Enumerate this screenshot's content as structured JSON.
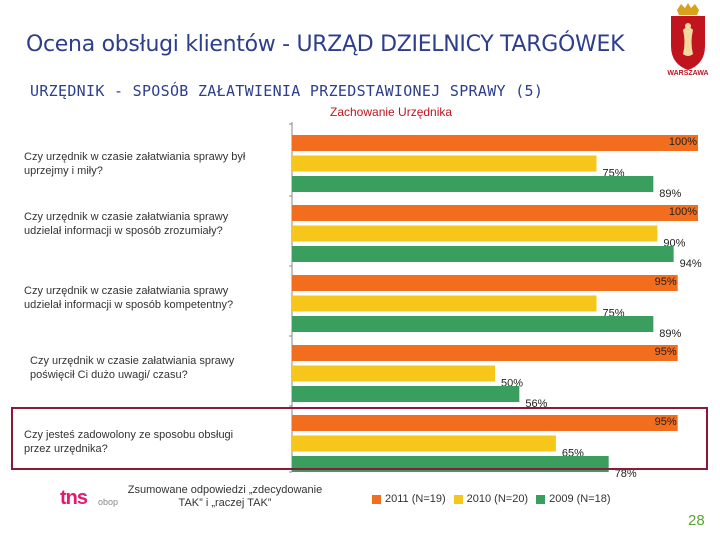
{
  "header": {
    "title": "Ocena obsługi klientów - URZĄD DZIELNICY TARGÓWEK",
    "subtitle": "URZĘDNIK - SPOSÓB ZAŁATWIENIA PRZEDSTAWIONEJ SPRAWY (5)",
    "logo_text": "WARSZAWA"
  },
  "chart_data": {
    "type": "bar",
    "orientation": "horizontal",
    "title": "Zachowanie Urzędnika",
    "categories": [
      "Czy urzędnik w czasie załatwiania sprawy był uprzejmy i miły?",
      "Czy urzędnik w czasie załatwiania sprawy udzielał informacji w sposób zrozumiały?",
      "Czy urzędnik w czasie załatwiania sprawy udzielał informacji w sposób kompetentny?",
      "Czy urzędnik w czasie załatwiania sprawy poświęcił Ci dużo uwagi/ czasu?",
      "Czy jesteś zadowolony ze sposobu obsługi przez urzędnika?"
    ],
    "series": [
      {
        "name": "2011 (N=19)",
        "color": "#f26d1d",
        "values": [
          100,
          100,
          95,
          95,
          95
        ]
      },
      {
        "name": "2010 (N=20)",
        "color": "#f7c61a",
        "values": [
          75,
          90,
          75,
          50,
          65
        ]
      },
      {
        "name": "2009 (N=18)",
        "color": "#3a9e5f",
        "values": [
          89,
          94,
          89,
          56,
          78
        ]
      }
    ],
    "xlim": [
      0,
      100
    ],
    "value_suffix": "%"
  },
  "footer": {
    "brand": "tns",
    "brand_sub": "obop",
    "note": "Zsumowane odpowiedzi „zdecydowanie TAK” i „raczej TAK”",
    "legend_labels": [
      "2011 (N=19)",
      "2010 (N=20)",
      "2009 (N=18)"
    ],
    "page_number": "28"
  }
}
